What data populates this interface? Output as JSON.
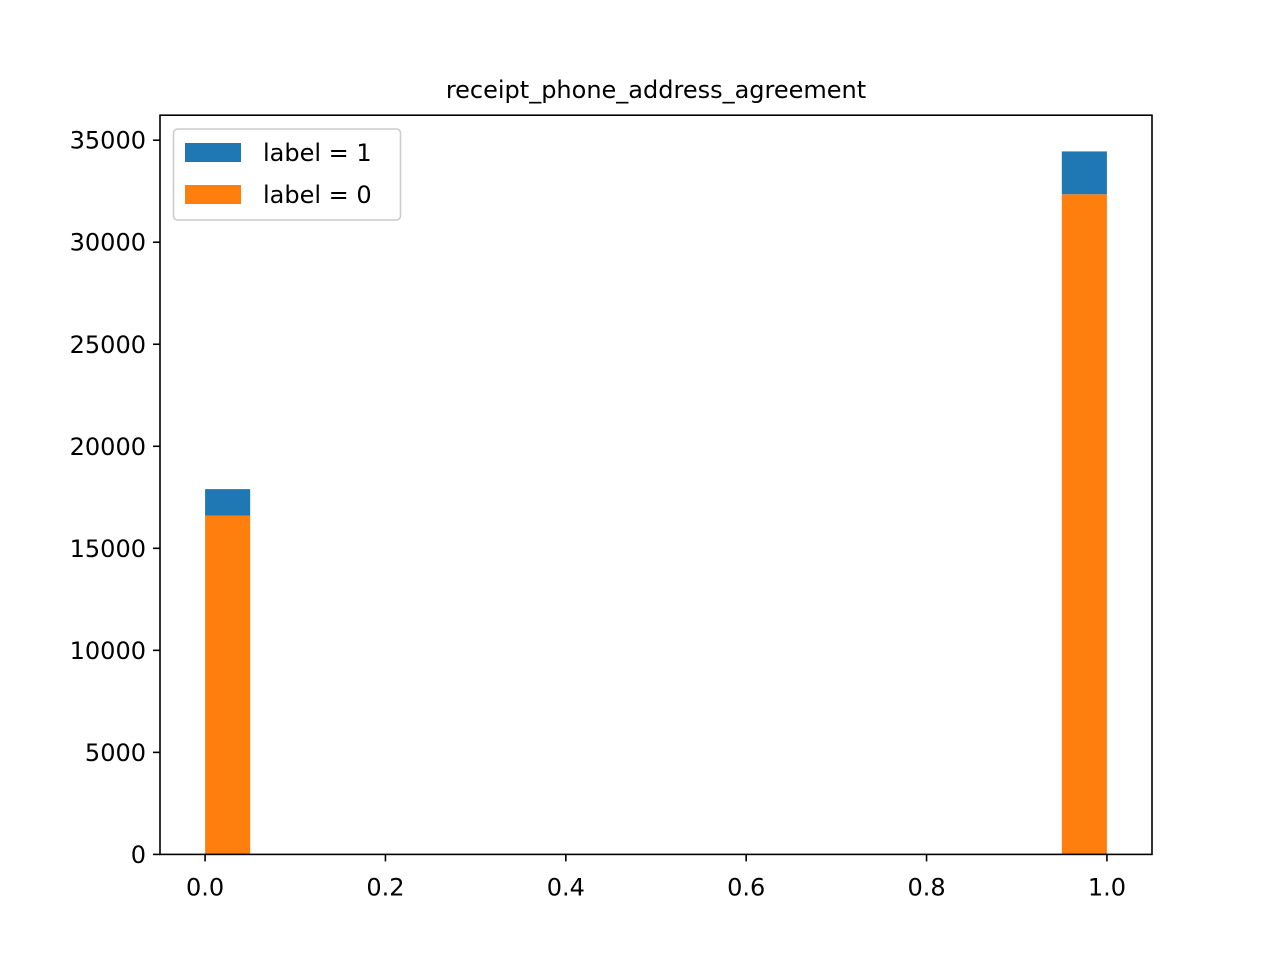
{
  "chart_data": {
    "type": "bar",
    "title": "receipt_phone_address_agreement",
    "xlabel": "",
    "ylabel": "",
    "xlim": [
      -0.05,
      1.05
    ],
    "ylim": [
      0,
      36225
    ],
    "x_ticks": [
      0.0,
      0.2,
      0.4,
      0.6,
      0.8,
      1.0
    ],
    "x_tick_labels": [
      "0.0",
      "0.2",
      "0.4",
      "0.6",
      "0.8",
      "1.0"
    ],
    "y_ticks": [
      0,
      5000,
      10000,
      15000,
      20000,
      25000,
      30000,
      35000
    ],
    "y_tick_labels": [
      "0",
      "5000",
      "10000",
      "15000",
      "20000",
      "25000",
      "30000",
      "35000"
    ],
    "bin_width": 0.05,
    "stacked": true,
    "grid": false,
    "legend_position": "top-left",
    "series": [
      {
        "name": "label = 1",
        "color": "#1f77b4",
        "bins": [
          {
            "x0": 0.0,
            "x1": 0.05,
            "value": 1300
          },
          {
            "x0": 0.95,
            "x1": 1.0,
            "value": 2100
          }
        ]
      },
      {
        "name": "label = 0",
        "color": "#ff7f0e",
        "bins": [
          {
            "x0": 0.0,
            "x1": 0.05,
            "value": 16600
          },
          {
            "x0": 0.95,
            "x1": 1.0,
            "value": 32350
          }
        ]
      }
    ]
  }
}
